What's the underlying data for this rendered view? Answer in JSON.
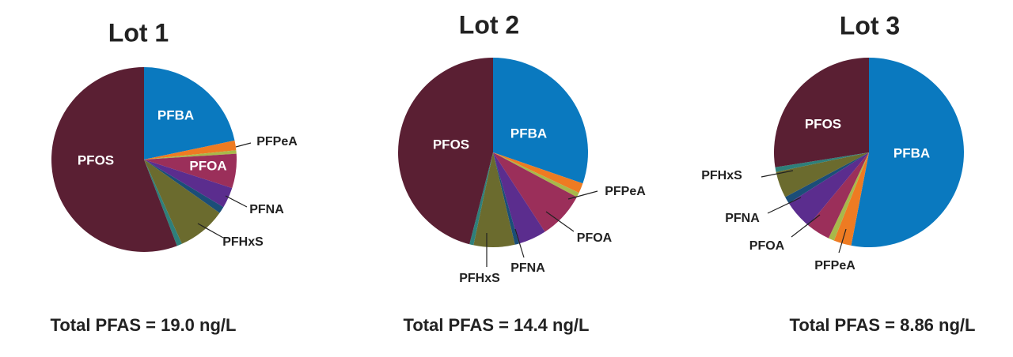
{
  "chart_data": [
    {
      "type": "pie",
      "title": "Lot 1",
      "subtitle": "Total PFAS = 19.0 ng/L",
      "categories": [
        "PFBA",
        "PFPeA",
        null,
        "PFOA",
        "PFNA",
        null,
        "PFHxS",
        null,
        "PFOS"
      ],
      "values": [
        21.7,
        1.7,
        0.6,
        6.0,
        3.6,
        1.2,
        8.5,
        0.9,
        55.8
      ],
      "colors": [
        "#0a79bf",
        "#ee7b22",
        "#a8b84a",
        "#9b2f5a",
        "#5b2d8e",
        "#1b4e78",
        "#6b6b2e",
        "#2e7f7a",
        "#5a1f33"
      ]
    },
    {
      "type": "pie",
      "title": "Lot 2",
      "subtitle": "Total PFAS = 14.4 ng/L",
      "categories": [
        "PFBA",
        "PFPeA",
        null,
        "PFOA",
        "PFNA",
        null,
        "PFHxS",
        null,
        "PFOS"
      ],
      "values": [
        30.3,
        1.7,
        0.8,
        8.0,
        4.8,
        0.7,
        7.0,
        0.7,
        46.0
      ],
      "colors": [
        "#0a79bf",
        "#ee7b22",
        "#a8b84a",
        "#9b2f5a",
        "#5b2d8e",
        "#1b4e78",
        "#6b6b2e",
        "#2e7f7a",
        "#5a1f33"
      ]
    },
    {
      "type": "pie",
      "title": "Lot 3",
      "subtitle": "Total PFAS = 8.86 ng/L",
      "categories": [
        "PFBA",
        "PFPeA",
        null,
        "PFOA",
        "PFNA",
        null,
        "PFHxS",
        null,
        "PFOS"
      ],
      "values": [
        53.0,
        3.0,
        1.0,
        4.0,
        5.0,
        1.2,
        4.5,
        0.8,
        27.5
      ],
      "colors": [
        "#0a79bf",
        "#ee7b22",
        "#a8b84a",
        "#9b2f5a",
        "#5b2d8e",
        "#1b4e78",
        "#6b6b2e",
        "#2e7f7a",
        "#5a1f33"
      ]
    }
  ]
}
